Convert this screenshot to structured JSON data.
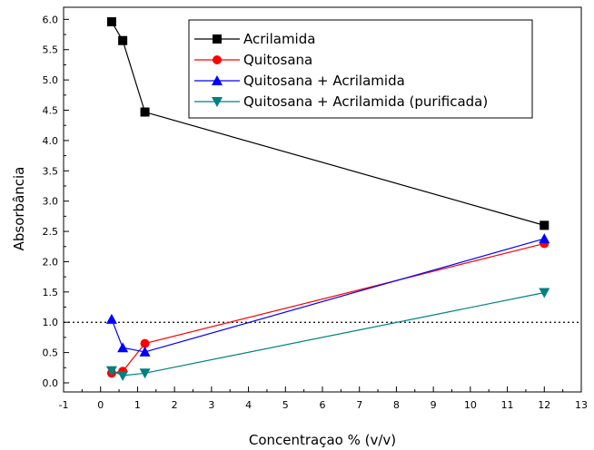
{
  "chart_data": {
    "type": "line",
    "xlabel": "Concentraçao % (v/v)",
    "ylabel": "Absorbância",
    "xlim": [
      -1,
      13
    ],
    "ylim": [
      -0.15,
      6.2
    ],
    "x_ticks": [
      "-1",
      "0",
      "1",
      "2",
      "3",
      "4",
      "5",
      "6",
      "7",
      "8",
      "9",
      "10",
      "11",
      "12",
      "13"
    ],
    "y_ticks": [
      "0.0",
      "0.5",
      "1.0",
      "1.5",
      "2.0",
      "2.5",
      "3.0",
      "3.5",
      "4.0",
      "4.5",
      "5.0",
      "5.5",
      "6.0"
    ],
    "reference_line": {
      "y": 1.0,
      "style": "dotted"
    },
    "legend_position": "top-right",
    "grid": false,
    "series": [
      {
        "name": "Acrilamida",
        "color": "#000000",
        "marker": "square",
        "x": [
          0.3,
          0.6,
          1.2,
          12
        ],
        "y": [
          5.96,
          5.65,
          4.47,
          2.6
        ]
      },
      {
        "name": "Quitosana",
        "color": "#ff0000",
        "marker": "circle",
        "x": [
          0.3,
          0.6,
          1.2,
          12
        ],
        "y": [
          0.16,
          0.19,
          0.65,
          2.3
        ]
      },
      {
        "name": "Quitosana + Acrilamida",
        "color": "#0000ff",
        "marker": "triangle-up",
        "x": [
          0.3,
          0.6,
          1.2,
          12
        ],
        "y": [
          1.05,
          0.58,
          0.51,
          2.38
        ]
      },
      {
        "name": "Quitosana + Acrilamida (purificada)",
        "color": "#008080",
        "marker": "triangle-down",
        "x": [
          0.3,
          0.6,
          1.2,
          12
        ],
        "y": [
          0.2,
          0.12,
          0.16,
          1.49
        ]
      }
    ]
  }
}
